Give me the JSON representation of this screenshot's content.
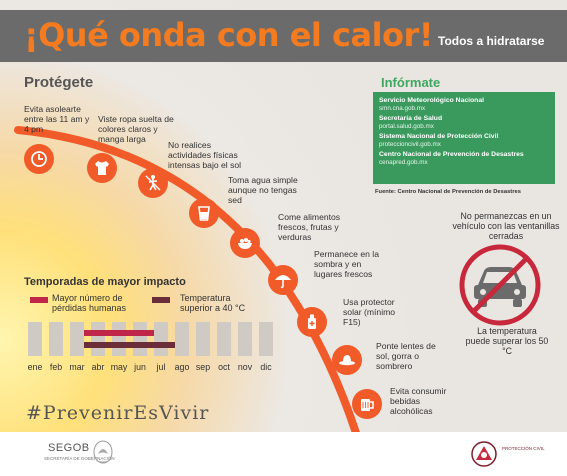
{
  "header": {
    "title": "¡Qué onda con el calor!",
    "subtitle": "Todos a hidratarse"
  },
  "protect": {
    "title": "Protégete",
    "steps": [
      {
        "label": "Evita asolearte entre las 11 am y 4 pm",
        "icon": "clock-icon"
      },
      {
        "label": "Viste ropa suelta de colores claros y manga larga",
        "icon": "shirt-icon"
      },
      {
        "label": "No realices actividades físicas intensas bajo el sol",
        "icon": "no-exercise-icon"
      },
      {
        "label": "Toma agua simple aunque no tengas sed",
        "icon": "water-glass-icon"
      },
      {
        "label": "Come alimentos frescos, frutas y verduras",
        "icon": "fruit-bowl-icon"
      },
      {
        "label": "Permanece en la sombra y en lugares frescos",
        "icon": "umbrella-icon"
      },
      {
        "label": "Usa protector solar (mínimo F15)",
        "icon": "sunscreen-icon"
      },
      {
        "label": "Ponte lentes de sol, gorra o sombrero",
        "icon": "hat-icon"
      },
      {
        "label": "Evita consumir bebidas alcohólicas",
        "icon": "beer-mug-icon"
      }
    ]
  },
  "info": {
    "title": "Infórmate",
    "orgs": [
      {
        "name": "Servicio Meteorológico Nacional",
        "url": "smn.cna.gob.mx"
      },
      {
        "name": "Secretaría de Salud",
        "url": "portal.salud.gob.mx"
      },
      {
        "name": "Sistema Nacional de Protección Civil",
        "url": "proteccioncivil.gob.mx"
      },
      {
        "name": "Centro Nacional de Prevención de Desastres",
        "url": "cenapred.gob.mx"
      }
    ],
    "source": "Fuente: Centro Nacional de Prevención de Desastres"
  },
  "warning": {
    "text": "No permanezcas en un vehículo con las ventanillas cerradas",
    "temp": "La temperatura puede superar los 50 °C",
    "icon": "no-car-icon"
  },
  "seasons": {
    "title": "Temporadas de mayor impacto",
    "legend": [
      {
        "label": "Mayor número de pérdidas humanas",
        "color": "#c0254a"
      },
      {
        "label": "Temperatura superior a 40 °C",
        "color": "#6b2d3a"
      }
    ],
    "months": [
      "ene",
      "feb",
      "mar",
      "abr",
      "may",
      "jun",
      "jul",
      "ago",
      "sep",
      "oct",
      "nov",
      "dic"
    ],
    "deaths_months": [
      "abr",
      "may",
      "jun"
    ],
    "temp_months": [
      "abr",
      "may",
      "jun",
      "jul"
    ]
  },
  "hashtag": "#PrevenirEsVivir",
  "footer": {
    "segob": "SEGOB",
    "segob_sub": "SECRETARÍA DE GOBERNACIÓN",
    "pc_text": "PROTECCIÓN CIVIL"
  },
  "colors": {
    "orange": "#f15a29",
    "title_orange": "#f47b20",
    "header_gray": "#6b6b6b",
    "info_green": "#3a9a5e",
    "warning_red": "#c8283c"
  }
}
